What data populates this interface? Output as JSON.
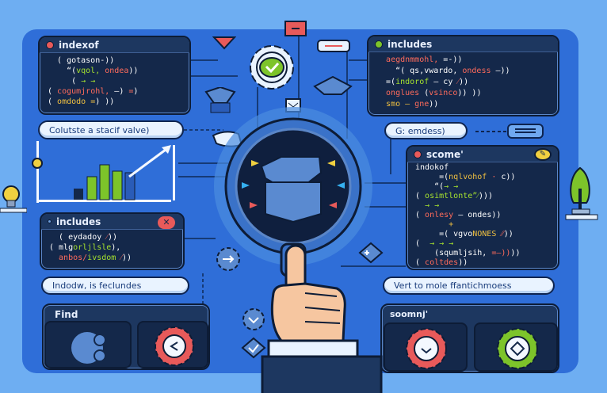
{
  "colors": {
    "background": "#6eaef2",
    "panel": "#2f6ed8",
    "code_bg": "#14284a",
    "red": "#e85a5a",
    "green": "#7dc42a",
    "yellow": "#f0d040"
  },
  "top_left_panel": {
    "title": "indexof",
    "dot": "red",
    "lines": [
      [
        {
          "t": "  ( gotason-))",
          "c": "#ffffff"
        }
      ],
      [
        {
          "t": "    “(",
          "c": "#ffffff"
        },
        {
          "t": "vqol, ",
          "c": "#a6e22e"
        },
        {
          "t": "ondea",
          "c": "#ff6b5b"
        },
        {
          "t": "))",
          "c": "#ffffff"
        }
      ],
      [
        {
          "t": "     ( ",
          "c": "#ffffff"
        },
        {
          "t": "→ →",
          "c": "#a6e22e"
        }
      ],
      [
        {
          "t": "( ",
          "c": "#ffffff"
        },
        {
          "t": "cogumjrohl, ",
          "c": "#ff6b5b"
        },
        {
          "t": "—) ",
          "c": "#ffffff"
        },
        {
          "t": "=",
          "c": "#ff6b5b"
        },
        {
          "t": ")",
          "c": "#ffffff"
        }
      ],
      [
        {
          "t": "( ",
          "c": "#ffffff"
        },
        {
          "t": "omdodo =",
          "c": "#f0c040"
        },
        {
          "t": ") ))",
          "c": "#ffffff"
        }
      ]
    ]
  },
  "top_left_pill": "Colutste a stacif valve)",
  "left_includes_panel": {
    "title": "includes",
    "close_icon": "x-icon",
    "lines": [
      [
        {
          "t": "  ( ",
          "c": "#ffffff"
        },
        {
          "t": "eydadoy",
          "c": "#ffffff"
        },
        {
          "t": " ⁄",
          "c": "#ff6b5b"
        },
        {
          "t": "))",
          "c": "#ffffff"
        }
      ],
      [
        {
          "t": "( mlg",
          "c": "#ffffff"
        },
        {
          "t": "orljlsle",
          "c": "#a6e22e"
        },
        {
          "t": "),",
          "c": "#ffffff"
        }
      ],
      [
        {
          "t": "  anbos/",
          "c": "#ff6b5b"
        },
        {
          "t": "ivsdom",
          "c": "#a6e22e"
        },
        {
          "t": " ⁄",
          "c": "#ff6b5b"
        },
        {
          "t": "))",
          "c": "#ffffff"
        }
      ]
    ]
  },
  "left_pill": "Indodw, is feclundes",
  "find_panel": {
    "title": "Find"
  },
  "top_right_panel": {
    "title": "includes",
    "dot": "green",
    "lines": [
      [
        {
          "t": "  ",
          "c": "#fff"
        },
        {
          "t": "aegdnmmohl, ",
          "c": "#ff6b5b"
        },
        {
          "t": "=-))",
          "c": "#ffffff"
        }
      ],
      [
        {
          "t": "    “( qs,vwardo, ",
          "c": "#ffffff"
        },
        {
          "t": "ondess",
          "c": "#ff6b5b"
        },
        {
          "t": " —))",
          "c": "#ffffff"
        }
      ],
      [
        {
          "t": "  =(",
          "c": "#ffffff"
        },
        {
          "t": "indorof",
          "c": "#a6e22e"
        },
        {
          "t": " — cy",
          "c": "#ffffff"
        },
        {
          "t": " ⁄",
          "c": "#ff6b5b"
        },
        {
          "t": "))",
          "c": "#ffffff"
        }
      ],
      [
        {
          "t": "  onglues",
          "c": "#ff6b5b"
        },
        {
          "t": " (",
          "c": "#ffffff"
        },
        {
          "t": "vsinco",
          "c": "#ff6b5b"
        },
        {
          "t": ")) ))",
          "c": "#ffffff"
        }
      ],
      [
        {
          "t": "  smo — ",
          "c": "#f0c040"
        },
        {
          "t": "gne",
          "c": "#ff6b5b"
        },
        {
          "t": "))",
          "c": "#ffffff"
        }
      ]
    ]
  },
  "top_right_pill": "G: emdess)",
  "scome_panel": {
    "title": "scome'",
    "badge_icon": "pencil-icon",
    "lines": [
      [
        {
          "t": "indokof",
          "c": "#ffffff"
        }
      ],
      [
        {
          "t": "     =(",
          "c": "#ffffff"
        },
        {
          "t": "nqlvohof",
          "c": "#f0c040"
        },
        {
          "t": " · ",
          "c": "#ff6b5b"
        },
        {
          "t": "c))",
          "c": "#ffffff"
        }
      ],
      [
        {
          "t": "    “(",
          "c": "#ffffff"
        },
        {
          "t": "→ →",
          "c": "#a6e22e"
        }
      ],
      [
        {
          "t": "( ",
          "c": "#ffffff"
        },
        {
          "t": "osimtlonte”⁄",
          "c": "#a6e22e"
        },
        {
          "t": ")))",
          "c": "#ffffff"
        }
      ],
      [
        {
          "t": "  → →",
          "c": "#a6e22e"
        }
      ],
      [
        {
          "t": "( ",
          "c": "#ffffff"
        },
        {
          "t": "onlesy",
          "c": "#ff6b5b"
        },
        {
          "t": " — ondes",
          "c": "#ffffff"
        },
        {
          "t": "))",
          "c": "#ffffff"
        }
      ],
      [
        {
          "t": "       +",
          "c": "#f0c040"
        }
      ],
      [
        {
          "t": "     =( vgvo",
          "c": "#ffffff"
        },
        {
          "t": "NONES",
          "c": "#f0c040"
        },
        {
          "t": " ⁄⁄",
          "c": "#ff6b5b"
        },
        {
          "t": "))",
          "c": "#ffffff"
        }
      ],
      [
        {
          "t": "(  ",
          "c": "#ffffff"
        },
        {
          "t": "→ → →",
          "c": "#a6e22e"
        }
      ],
      [
        {
          "t": "    (squmljsih, ",
          "c": "#ffffff"
        },
        {
          "t": "=—))",
          "c": "#ff6b5b"
        },
        {
          "t": "))",
          "c": "#ffffff"
        }
      ],
      [
        {
          "t": "( ",
          "c": "#ffffff"
        },
        {
          "t": "coltdes",
          "c": "#ff6b5b"
        },
        {
          "t": "))",
          "c": "#ffffff"
        }
      ]
    ]
  },
  "right_pill": "Vert to mole ffantichmoess",
  "bottom_right_panel": {
    "title": "soomnj'"
  },
  "icons": [
    "gear-check-icon",
    "magnifier-icon",
    "pointing-hand-icon",
    "lightbulb-icon",
    "tree-icon",
    "bar-chart-icon",
    "gear-icon"
  ]
}
